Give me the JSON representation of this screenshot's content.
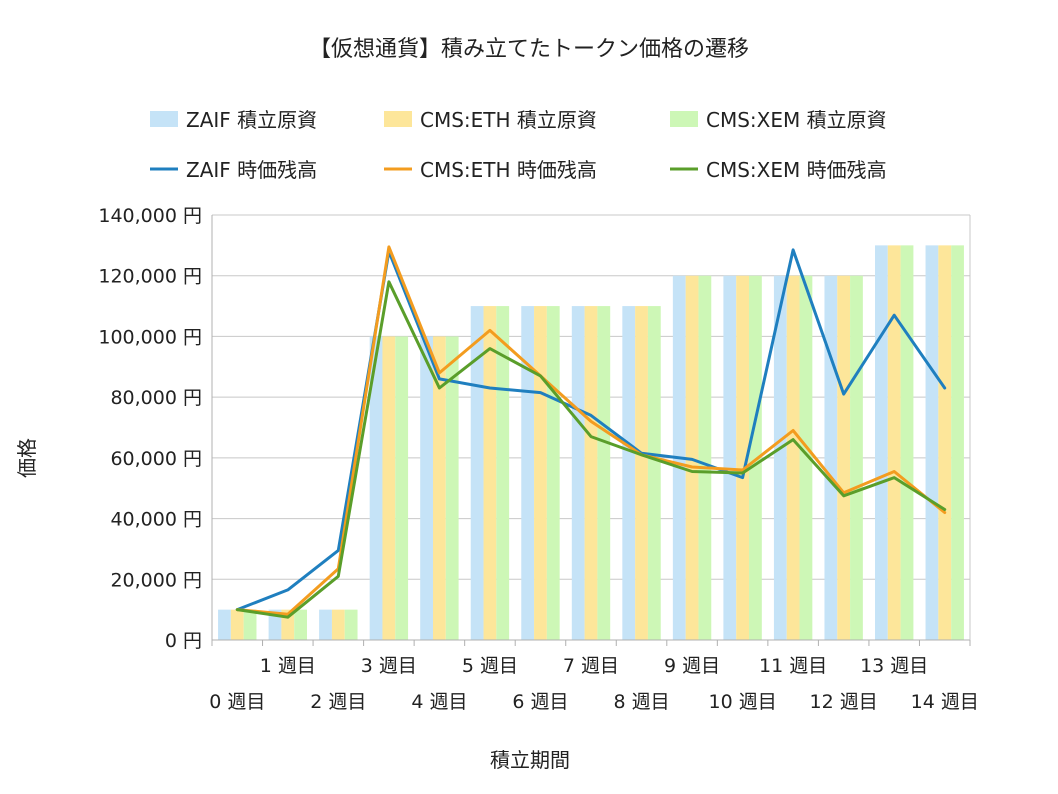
{
  "chart_data": {
    "type": "bar+line",
    "title": "【仮想通貨】積み立てたトークン価格の遷移",
    "xlabel": "積立期間",
    "ylabel": "価格",
    "ylim": [
      0,
      140000
    ],
    "yticks": [
      "0 円",
      "20,000 円",
      "40,000 円",
      "60,000 円",
      "80,000 円",
      "100,000 円",
      "120,000 円",
      "140,000 円"
    ],
    "ytick_values": [
      0,
      20000,
      40000,
      60000,
      80000,
      100000,
      120000,
      140000
    ],
    "categories": [
      "0 週目",
      "1 週目",
      "2 週目",
      "3 週目",
      "4 週目",
      "5 週目",
      "6 週目",
      "7 週目",
      "8 週目",
      "9 週目",
      "10 週目",
      "11 週目",
      "12 週目",
      "13 週目",
      "14 週目"
    ],
    "legend": [
      "ZAIF 積立原資",
      "CMS:ETH 積立原資",
      "CMS:XEM 積立原資",
      "ZAIF 時価残高",
      "CMS:ETH 時価残高",
      "CMS:XEM 時価残高"
    ],
    "bar_series": [
      {
        "name": "ZAIF 積立原資",
        "color": "#c5e3f7",
        "values": [
          10000,
          10000,
          10000,
          100000,
          100000,
          110000,
          110000,
          110000,
          110000,
          120000,
          120000,
          120000,
          120000,
          130000,
          130000
        ]
      },
      {
        "name": "CMS:ETH 積立原資",
        "color": "#fde69a",
        "values": [
          10000,
          10000,
          10000,
          100000,
          100000,
          110000,
          110000,
          110000,
          110000,
          120000,
          120000,
          120000,
          120000,
          130000,
          130000
        ]
      },
      {
        "name": "CMS:XEM 積立原資",
        "color": "#cdf7b6",
        "values": [
          10000,
          10000,
          10000,
          100000,
          100000,
          110000,
          110000,
          110000,
          110000,
          120000,
          120000,
          120000,
          120000,
          130000,
          130000
        ]
      }
    ],
    "line_series": [
      {
        "name": "ZAIF 時価残高",
        "color": "#1f7fbf",
        "values": [
          10000,
          16500,
          29500,
          128000,
          86000,
          83000,
          81500,
          74000,
          61500,
          59500,
          53500,
          128500,
          81000,
          107000,
          83000
        ]
      },
      {
        "name": "CMS:ETH 時価残高",
        "color": "#f39c1f",
        "values": [
          10000,
          8500,
          23500,
          129500,
          88000,
          102000,
          87000,
          72000,
          61000,
          57000,
          56000,
          69000,
          48500,
          55500,
          42000
        ]
      },
      {
        "name": "CMS:XEM 時価残高",
        "color": "#5a9e2a",
        "values": [
          10000,
          7500,
          21000,
          118000,
          83000,
          96000,
          87000,
          67000,
          61000,
          55500,
          55000,
          66000,
          47500,
          53500,
          43000
        ]
      }
    ]
  }
}
